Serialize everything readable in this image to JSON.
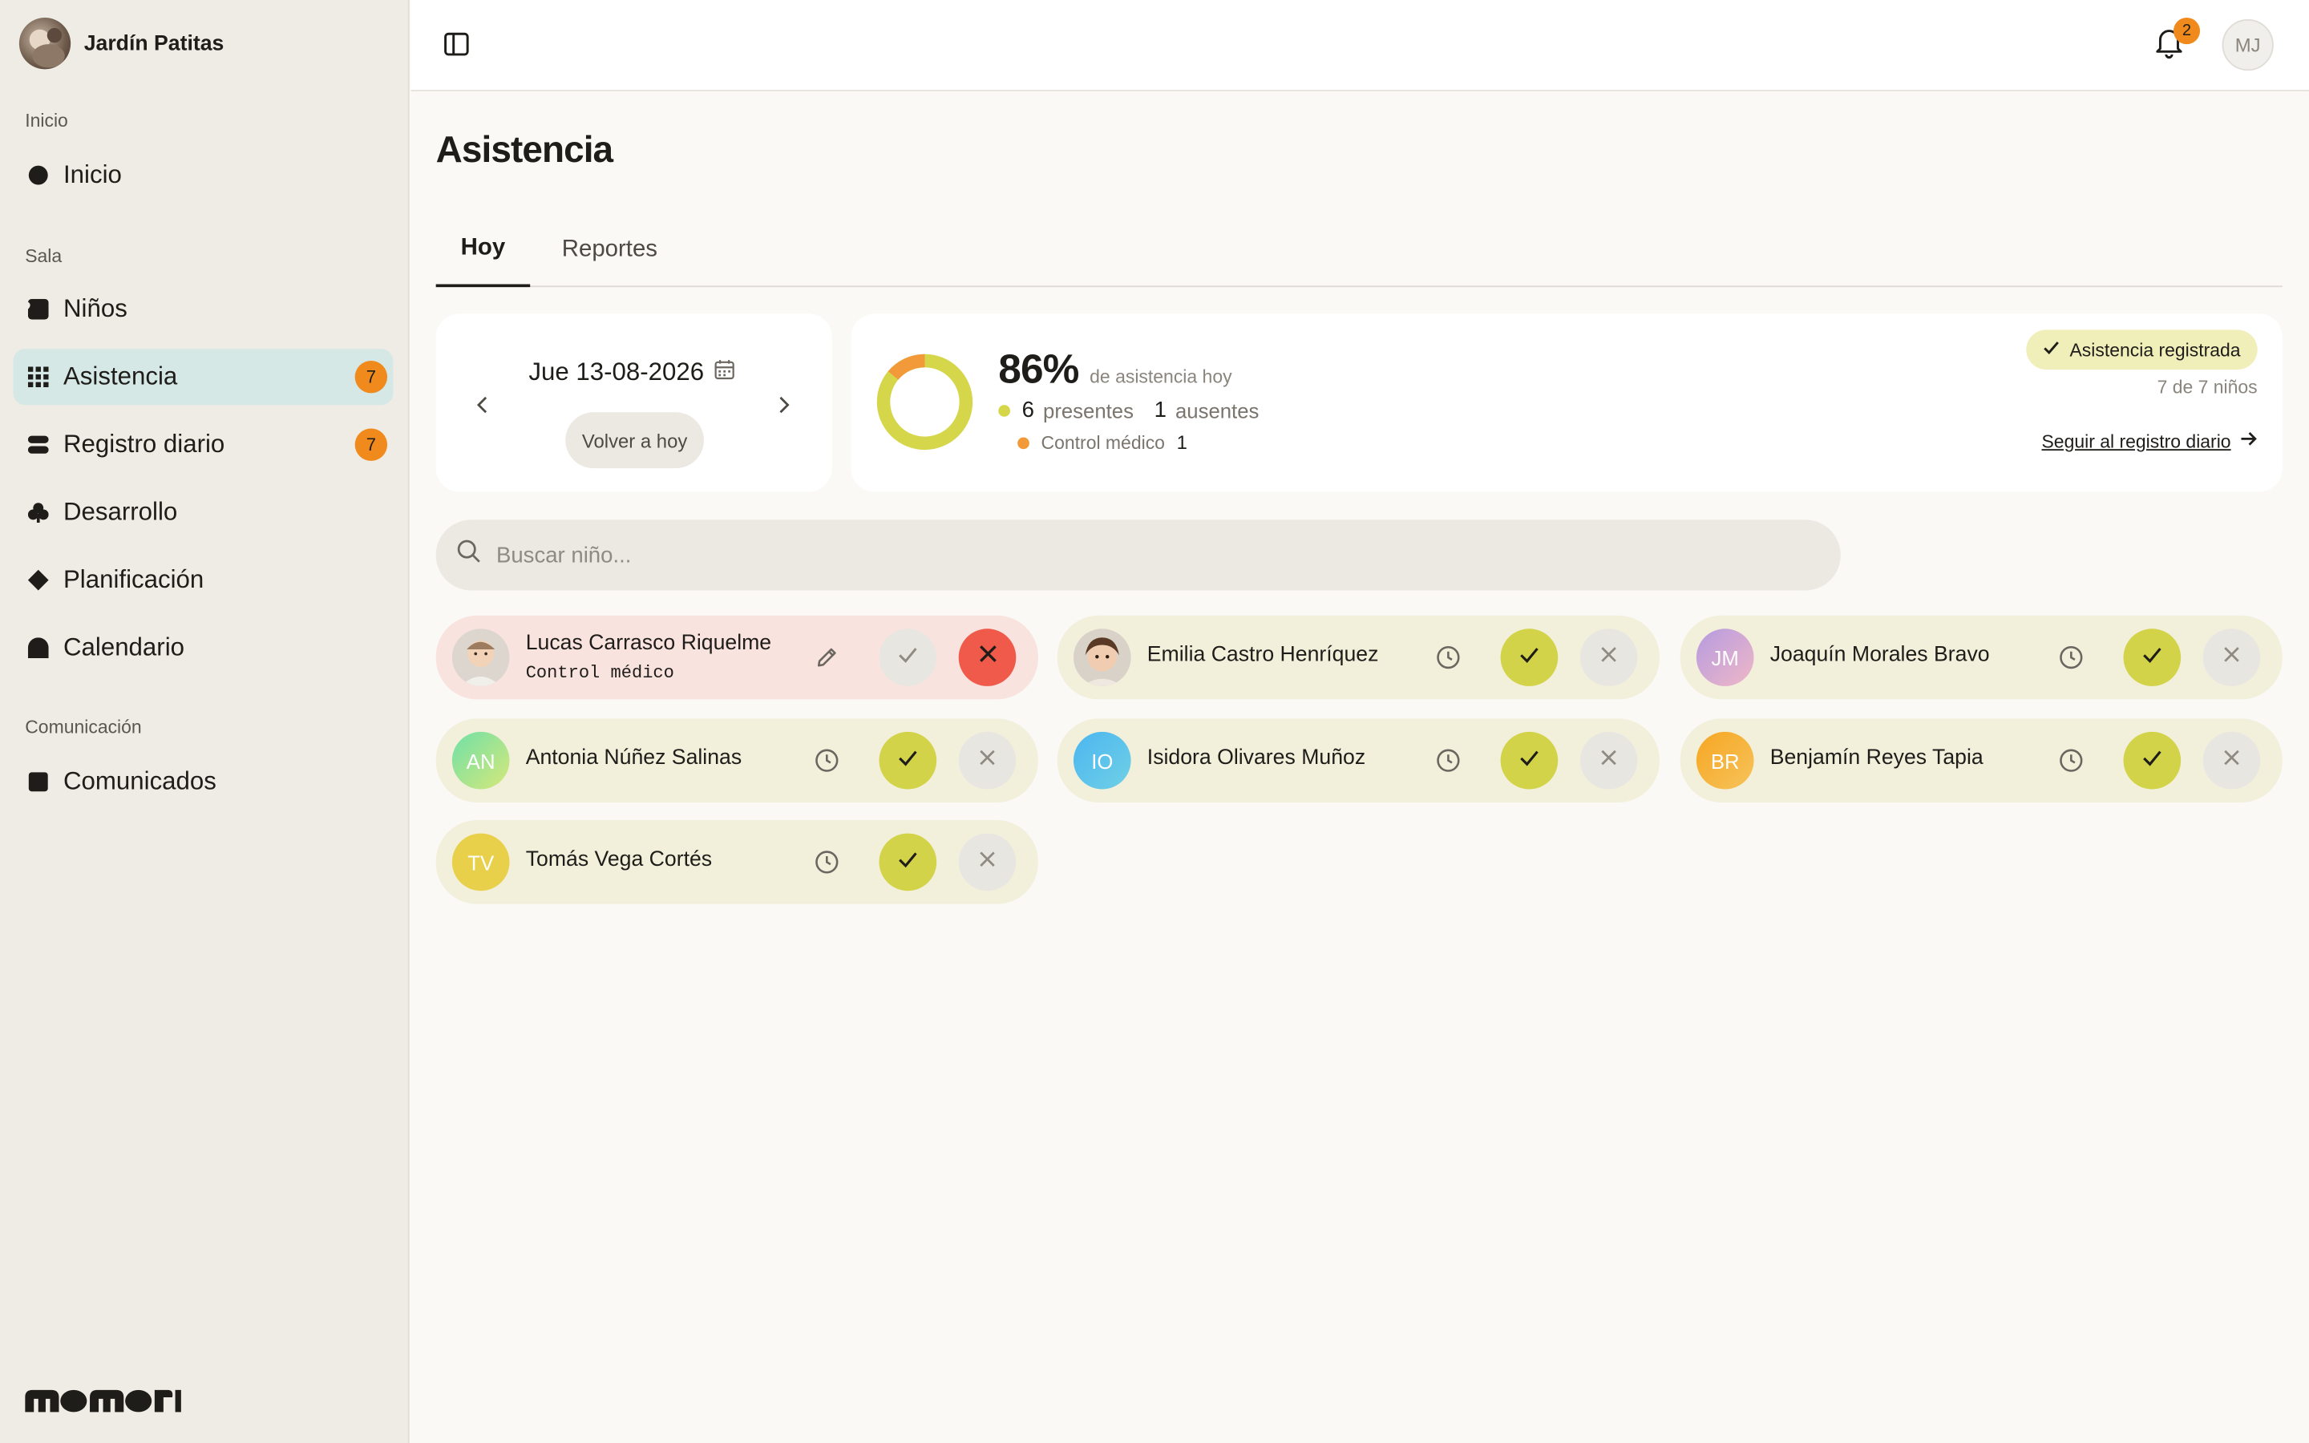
{
  "sidebar": {
    "org_name": "Jardín Patitas",
    "sections": [
      {
        "label": "Inicio"
      },
      {
        "label": "Sala"
      },
      {
        "label": "Comunicación"
      }
    ],
    "items": [
      {
        "label": "Inicio",
        "icon": "circle-icon"
      },
      {
        "label": "Niños",
        "icon": "square-rounded-icon"
      },
      {
        "label": "Asistencia",
        "icon": "grid-icon",
        "badge": "7",
        "active": true
      },
      {
        "label": "Registro diario",
        "icon": "stack-icon",
        "badge": "7"
      },
      {
        "label": "Desarrollo",
        "icon": "club-icon"
      },
      {
        "label": "Planificación",
        "icon": "diamond-icon"
      },
      {
        "label": "Calendario",
        "icon": "arch-icon"
      },
      {
        "label": "Comunicados",
        "icon": "square-icon"
      }
    ],
    "logo_text": "momori"
  },
  "topbar": {
    "notifications_count": "2",
    "user_initials": "MJ"
  },
  "page": {
    "title": "Asistencia",
    "tabs": [
      {
        "label": "Hoy",
        "active": true
      },
      {
        "label": "Reportes",
        "active": false
      }
    ]
  },
  "date_card": {
    "date": "Jue 13-08-2026",
    "today_button": "Volver a hoy"
  },
  "stats": {
    "percent": "86%",
    "percent_label": "de asistencia hoy",
    "present_count": "6",
    "present_label": "presentes",
    "absent_count": "1",
    "absent_label": "ausentes",
    "medical_label": "Control médico",
    "medical_count": "1",
    "registered_label": "Asistencia registrada",
    "children_count": "7 de 7 niños",
    "follow_link": "Seguir al registro diario",
    "donut_present_fraction": 0.86,
    "colors": {
      "present": "#d6d64a",
      "medical": "#f29a3a"
    }
  },
  "search": {
    "placeholder": "Buscar niño..."
  },
  "children": [
    {
      "name": "Lucas Carrasco Riquelme",
      "note": "Control médico",
      "status": "absent",
      "avatar_type": "photo",
      "initials": ""
    },
    {
      "name": "Emilia Castro Henríquez",
      "status": "present",
      "avatar_type": "photo",
      "initials": ""
    },
    {
      "name": "Joaquín Morales Bravo",
      "status": "present",
      "avatar_type": "initials",
      "initials": "JM",
      "color": "linear-gradient(135deg,#b59be0,#f0b7c7)"
    },
    {
      "name": "Antonia Núñez Salinas",
      "status": "present",
      "avatar_type": "initials",
      "initials": "AN",
      "color": "linear-gradient(135deg,#6fe0a8,#d7e87a)"
    },
    {
      "name": "Isidora Olivares Muñoz",
      "status": "present",
      "avatar_type": "initials",
      "initials": "IO",
      "color": "linear-gradient(135deg,#4cb6f0,#6fd0e6)"
    },
    {
      "name": "Benjamín Reyes Tapia",
      "status": "present",
      "avatar_type": "initials",
      "initials": "BR",
      "color": "linear-gradient(135deg,#f5a623,#f7c35a)"
    },
    {
      "name": "Tomás Vega Cortés",
      "status": "present",
      "avatar_type": "initials",
      "initials": "TV",
      "color": "#e9d04a"
    }
  ]
}
